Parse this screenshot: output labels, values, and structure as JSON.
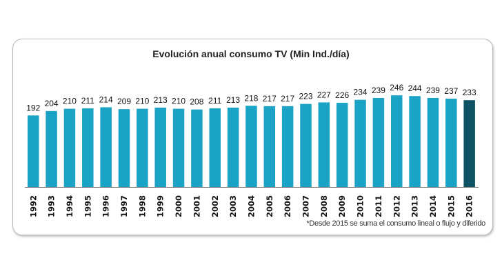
{
  "chart_data": {
    "type": "bar",
    "title": "Evolución anual consumo TV (Min  Ind./día)",
    "categories": [
      "1992",
      "1993",
      "1994",
      "1995",
      "1996",
      "1997",
      "1998",
      "1999",
      "2000",
      "2001",
      "2002",
      "2003",
      "2004",
      "2005",
      "2006",
      "2007",
      "2008",
      "2009",
      "2010",
      "2011",
      "2012",
      "2013",
      "2014",
      "2015",
      "2016"
    ],
    "values": [
      192,
      204,
      210,
      211,
      214,
      209,
      210,
      213,
      210,
      208,
      211,
      213,
      218,
      217,
      217,
      223,
      227,
      226,
      234,
      239,
      246,
      244,
      239,
      237,
      233
    ],
    "ylim": [
      0,
      260
    ],
    "grid": false,
    "colors": {
      "bar": "#1ba3c6",
      "highlight": "#0e5364"
    },
    "highlight_category": "2016",
    "footnote": "*Desde 2015 se suma el consumo lineal o flujo y diferido"
  }
}
